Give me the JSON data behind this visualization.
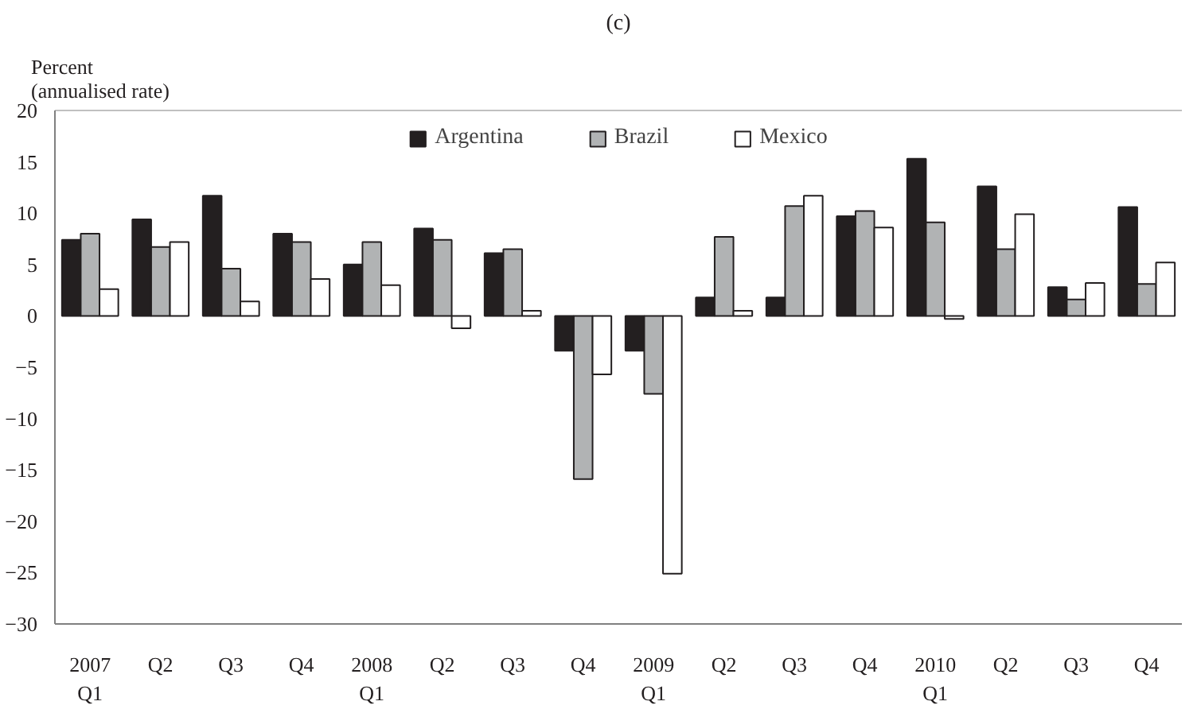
{
  "chart_data": {
    "type": "bar",
    "title": "(c)",
    "ylabel": "Percent\n(annualised rate)",
    "categories": [
      "2007\nQ1",
      "Q2",
      "Q3",
      "Q4",
      "2008\nQ1",
      "Q2",
      "Q3",
      "Q4",
      "2009\nQ1",
      "Q2",
      "Q3",
      "Q4",
      "2010\nQ1",
      "Q2",
      "Q3",
      "Q4"
    ],
    "series": [
      {
        "name": "Argentina",
        "color": "#231f20",
        "values": [
          7.4,
          9.4,
          11.7,
          8.0,
          5.0,
          8.5,
          6.1,
          -3.4,
          -3.4,
          1.8,
          1.8,
          9.7,
          15.3,
          12.6,
          2.8,
          10.6
        ]
      },
      {
        "name": "Brazil",
        "color": "#b1b3b4",
        "values": [
          8.0,
          6.7,
          4.6,
          7.2,
          7.2,
          7.4,
          6.5,
          -15.9,
          -7.6,
          7.7,
          10.7,
          10.2,
          9.1,
          6.5,
          1.6,
          3.1
        ]
      },
      {
        "name": "Mexico",
        "color": "#ffffff",
        "values": [
          2.6,
          7.2,
          1.4,
          3.6,
          3.0,
          -1.2,
          0.5,
          -5.7,
          -25.1,
          0.5,
          11.7,
          8.6,
          -0.3,
          9.9,
          3.2,
          5.2
        ]
      }
    ],
    "ylim": [
      -30,
      20
    ],
    "yticks": [
      -30,
      -25,
      -20,
      -15,
      -10,
      -5,
      0,
      5,
      10,
      15,
      20
    ],
    "grid": false,
    "legend": "top"
  }
}
